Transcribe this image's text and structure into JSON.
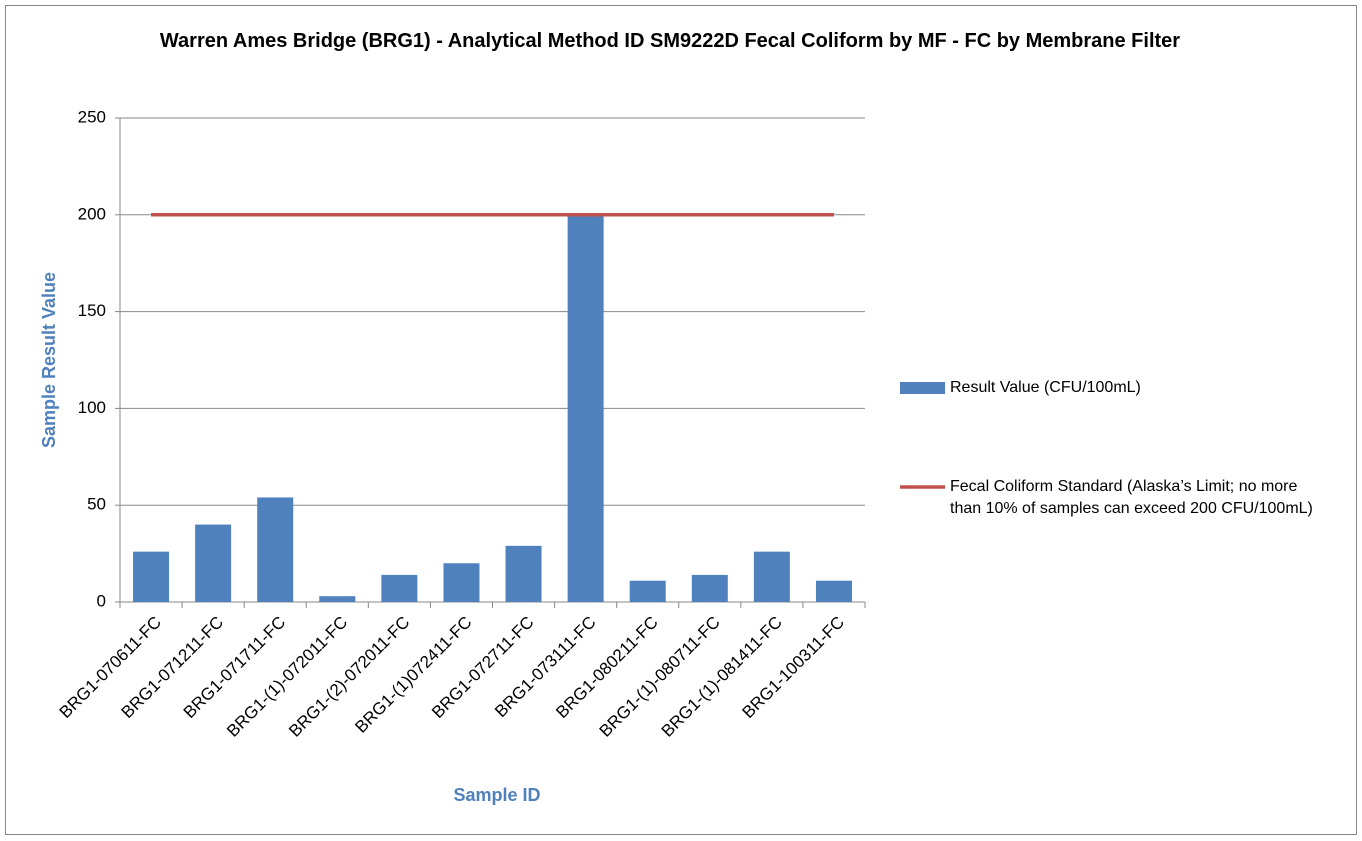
{
  "chart_data": {
    "type": "bar",
    "title": "Warren Ames Bridge (BRG1) - Analytical Method ID SM9222D Fecal Coliform by MF - FC by Membrane Filter",
    "x_label": "Sample ID",
    "y_label": "Sample Result Value",
    "categories": [
      "BRG1-070611-FC",
      "BRG1-071211-FC",
      "BRG1-071711-FC",
      "BRG1-(1)-072011-FC",
      "BRG1-(2)-072011-FC",
      "BRG1-(1)072411-FC",
      "BRG1-072711-FC",
      "BRG1-073111-FC",
      "BRG1-080211-FC",
      "BRG1-(1)-080711-FC",
      "BRG1-(1)-081411-FC",
      "BRG1-100311-FC"
    ],
    "series": [
      {
        "name": "Result Value (CFU/100mL)",
        "type": "bar",
        "color": "#4f81bd",
        "values": [
          26,
          40,
          54,
          3,
          14,
          20,
          29,
          200,
          11,
          14,
          26,
          11
        ]
      },
      {
        "name": "Fecal Coliform Standard (Alaska’s Limit; no more than 10% of samples can exceed 200 CFU/100mL)",
        "type": "line",
        "color": "#c0504d",
        "values": [
          200,
          200,
          200,
          200,
          200,
          200,
          200,
          200,
          200,
          200,
          200,
          200
        ]
      }
    ],
    "ylim": [
      0,
      250
    ],
    "yticks": [
      0,
      50,
      100,
      150,
      200,
      250
    ],
    "grid": true,
    "legend": "right"
  }
}
